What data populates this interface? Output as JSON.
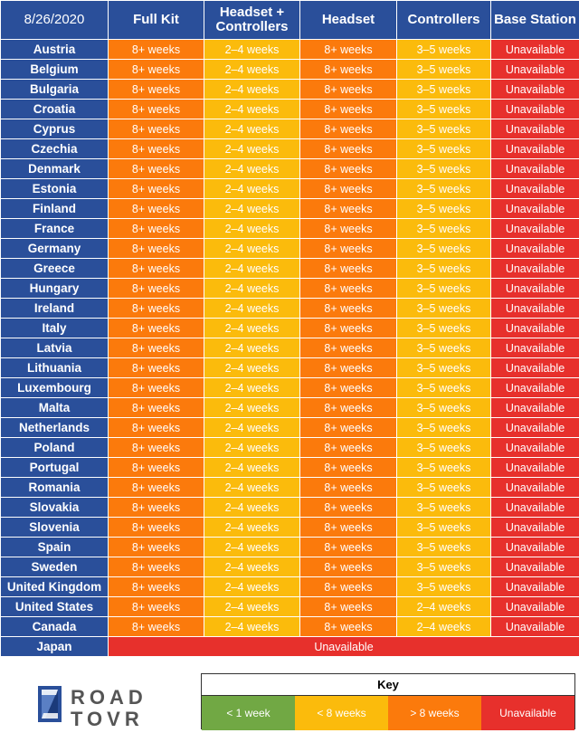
{
  "header": {
    "date": "8/26/2020",
    "columns": [
      "Full Kit",
      "Headset + Controllers",
      "Headset",
      "Controllers",
      "Base Station"
    ]
  },
  "colors": {
    "header_blue": "#2a4f9a",
    "orange": "#fb7a0c",
    "yellow": "#fbbb0c",
    "red": "#e7302c",
    "green": "#71a844"
  },
  "rows": [
    {
      "country": "Austria",
      "cells": [
        "8+ weeks",
        "2–4 weeks",
        "8+ weeks",
        "3–5 weeks",
        "Unavailable"
      ]
    },
    {
      "country": "Belgium",
      "cells": [
        "8+ weeks",
        "2–4 weeks",
        "8+ weeks",
        "3–5 weeks",
        "Unavailable"
      ]
    },
    {
      "country": "Bulgaria",
      "cells": [
        "8+ weeks",
        "2–4 weeks",
        "8+ weeks",
        "3–5 weeks",
        "Unavailable"
      ]
    },
    {
      "country": "Croatia",
      "cells": [
        "8+ weeks",
        "2–4 weeks",
        "8+ weeks",
        "3–5 weeks",
        "Unavailable"
      ]
    },
    {
      "country": "Cyprus",
      "cells": [
        "8+ weeks",
        "2–4 weeks",
        "8+ weeks",
        "3–5 weeks",
        "Unavailable"
      ]
    },
    {
      "country": "Czechia",
      "cells": [
        "8+ weeks",
        "2–4 weeks",
        "8+ weeks",
        "3–5 weeks",
        "Unavailable"
      ]
    },
    {
      "country": "Denmark",
      "cells": [
        "8+ weeks",
        "2–4 weeks",
        "8+ weeks",
        "3–5 weeks",
        "Unavailable"
      ]
    },
    {
      "country": "Estonia",
      "cells": [
        "8+ weeks",
        "2–4 weeks",
        "8+ weeks",
        "3–5 weeks",
        "Unavailable"
      ]
    },
    {
      "country": "Finland",
      "cells": [
        "8+ weeks",
        "2–4 weeks",
        "8+ weeks",
        "3–5 weeks",
        "Unavailable"
      ]
    },
    {
      "country": "France",
      "cells": [
        "8+ weeks",
        "2–4 weeks",
        "8+ weeks",
        "3–5 weeks",
        "Unavailable"
      ]
    },
    {
      "country": "Germany",
      "cells": [
        "8+ weeks",
        "2–4 weeks",
        "8+ weeks",
        "3–5 weeks",
        "Unavailable"
      ]
    },
    {
      "country": "Greece",
      "cells": [
        "8+ weeks",
        "2–4 weeks",
        "8+ weeks",
        "3–5 weeks",
        "Unavailable"
      ]
    },
    {
      "country": "Hungary",
      "cells": [
        "8+ weeks",
        "2–4 weeks",
        "8+ weeks",
        "3–5 weeks",
        "Unavailable"
      ]
    },
    {
      "country": "Ireland",
      "cells": [
        "8+ weeks",
        "2–4 weeks",
        "8+ weeks",
        "3–5 weeks",
        "Unavailable"
      ]
    },
    {
      "country": "Italy",
      "cells": [
        "8+ weeks",
        "2–4 weeks",
        "8+ weeks",
        "3–5 weeks",
        "Unavailable"
      ]
    },
    {
      "country": "Latvia",
      "cells": [
        "8+ weeks",
        "2–4 weeks",
        "8+ weeks",
        "3–5 weeks",
        "Unavailable"
      ]
    },
    {
      "country": "Lithuania",
      "cells": [
        "8+ weeks",
        "2–4 weeks",
        "8+ weeks",
        "3–5 weeks",
        "Unavailable"
      ]
    },
    {
      "country": "Luxembourg",
      "cells": [
        "8+ weeks",
        "2–4 weeks",
        "8+ weeks",
        "3–5 weeks",
        "Unavailable"
      ]
    },
    {
      "country": "Malta",
      "cells": [
        "8+ weeks",
        "2–4 weeks",
        "8+ weeks",
        "3–5 weeks",
        "Unavailable"
      ]
    },
    {
      "country": "Netherlands",
      "cells": [
        "8+ weeks",
        "2–4 weeks",
        "8+ weeks",
        "3–5 weeks",
        "Unavailable"
      ]
    },
    {
      "country": "Poland",
      "cells": [
        "8+ weeks",
        "2–4 weeks",
        "8+ weeks",
        "3–5 weeks",
        "Unavailable"
      ]
    },
    {
      "country": "Portugal",
      "cells": [
        "8+ weeks",
        "2–4 weeks",
        "8+ weeks",
        "3–5 weeks",
        "Unavailable"
      ]
    },
    {
      "country": "Romania",
      "cells": [
        "8+ weeks",
        "2–4 weeks",
        "8+ weeks",
        "3–5 weeks",
        "Unavailable"
      ]
    },
    {
      "country": "Slovakia",
      "cells": [
        "8+ weeks",
        "2–4 weeks",
        "8+ weeks",
        "3–5 weeks",
        "Unavailable"
      ]
    },
    {
      "country": "Slovenia",
      "cells": [
        "8+ weeks",
        "2–4 weeks",
        "8+ weeks",
        "3–5 weeks",
        "Unavailable"
      ]
    },
    {
      "country": "Spain",
      "cells": [
        "8+ weeks",
        "2–4 weeks",
        "8+ weeks",
        "3–5 weeks",
        "Unavailable"
      ]
    },
    {
      "country": "Sweden",
      "cells": [
        "8+ weeks",
        "2–4 weeks",
        "8+ weeks",
        "3–5 weeks",
        "Unavailable"
      ]
    },
    {
      "country": "United Kingdom",
      "cells": [
        "8+ weeks",
        "2–4 weeks",
        "8+ weeks",
        "3–5 weeks",
        "Unavailable"
      ]
    },
    {
      "country": "United States",
      "cells": [
        "8+ weeks",
        "2–4 weeks",
        "8+ weeks",
        "2–4 weeks",
        "Unavailable"
      ]
    },
    {
      "country": "Canada",
      "cells": [
        "8+ weeks",
        "2–4 weeks",
        "8+ weeks",
        "2–4 weeks",
        "Unavailable"
      ]
    }
  ],
  "japan": {
    "country": "Japan",
    "value": "Unavailable"
  },
  "logo": {
    "line1": "ROAD",
    "line2": "TOVR"
  },
  "key": {
    "title": "Key",
    "items": [
      {
        "label": "< 1 week",
        "color": "#71a844"
      },
      {
        "label": "< 8 weeks",
        "color": "#fbbb0c"
      },
      {
        "label": "> 8 weeks",
        "color": "#fb7a0c"
      },
      {
        "label": "Unavailable",
        "color": "#e7302c"
      }
    ]
  }
}
